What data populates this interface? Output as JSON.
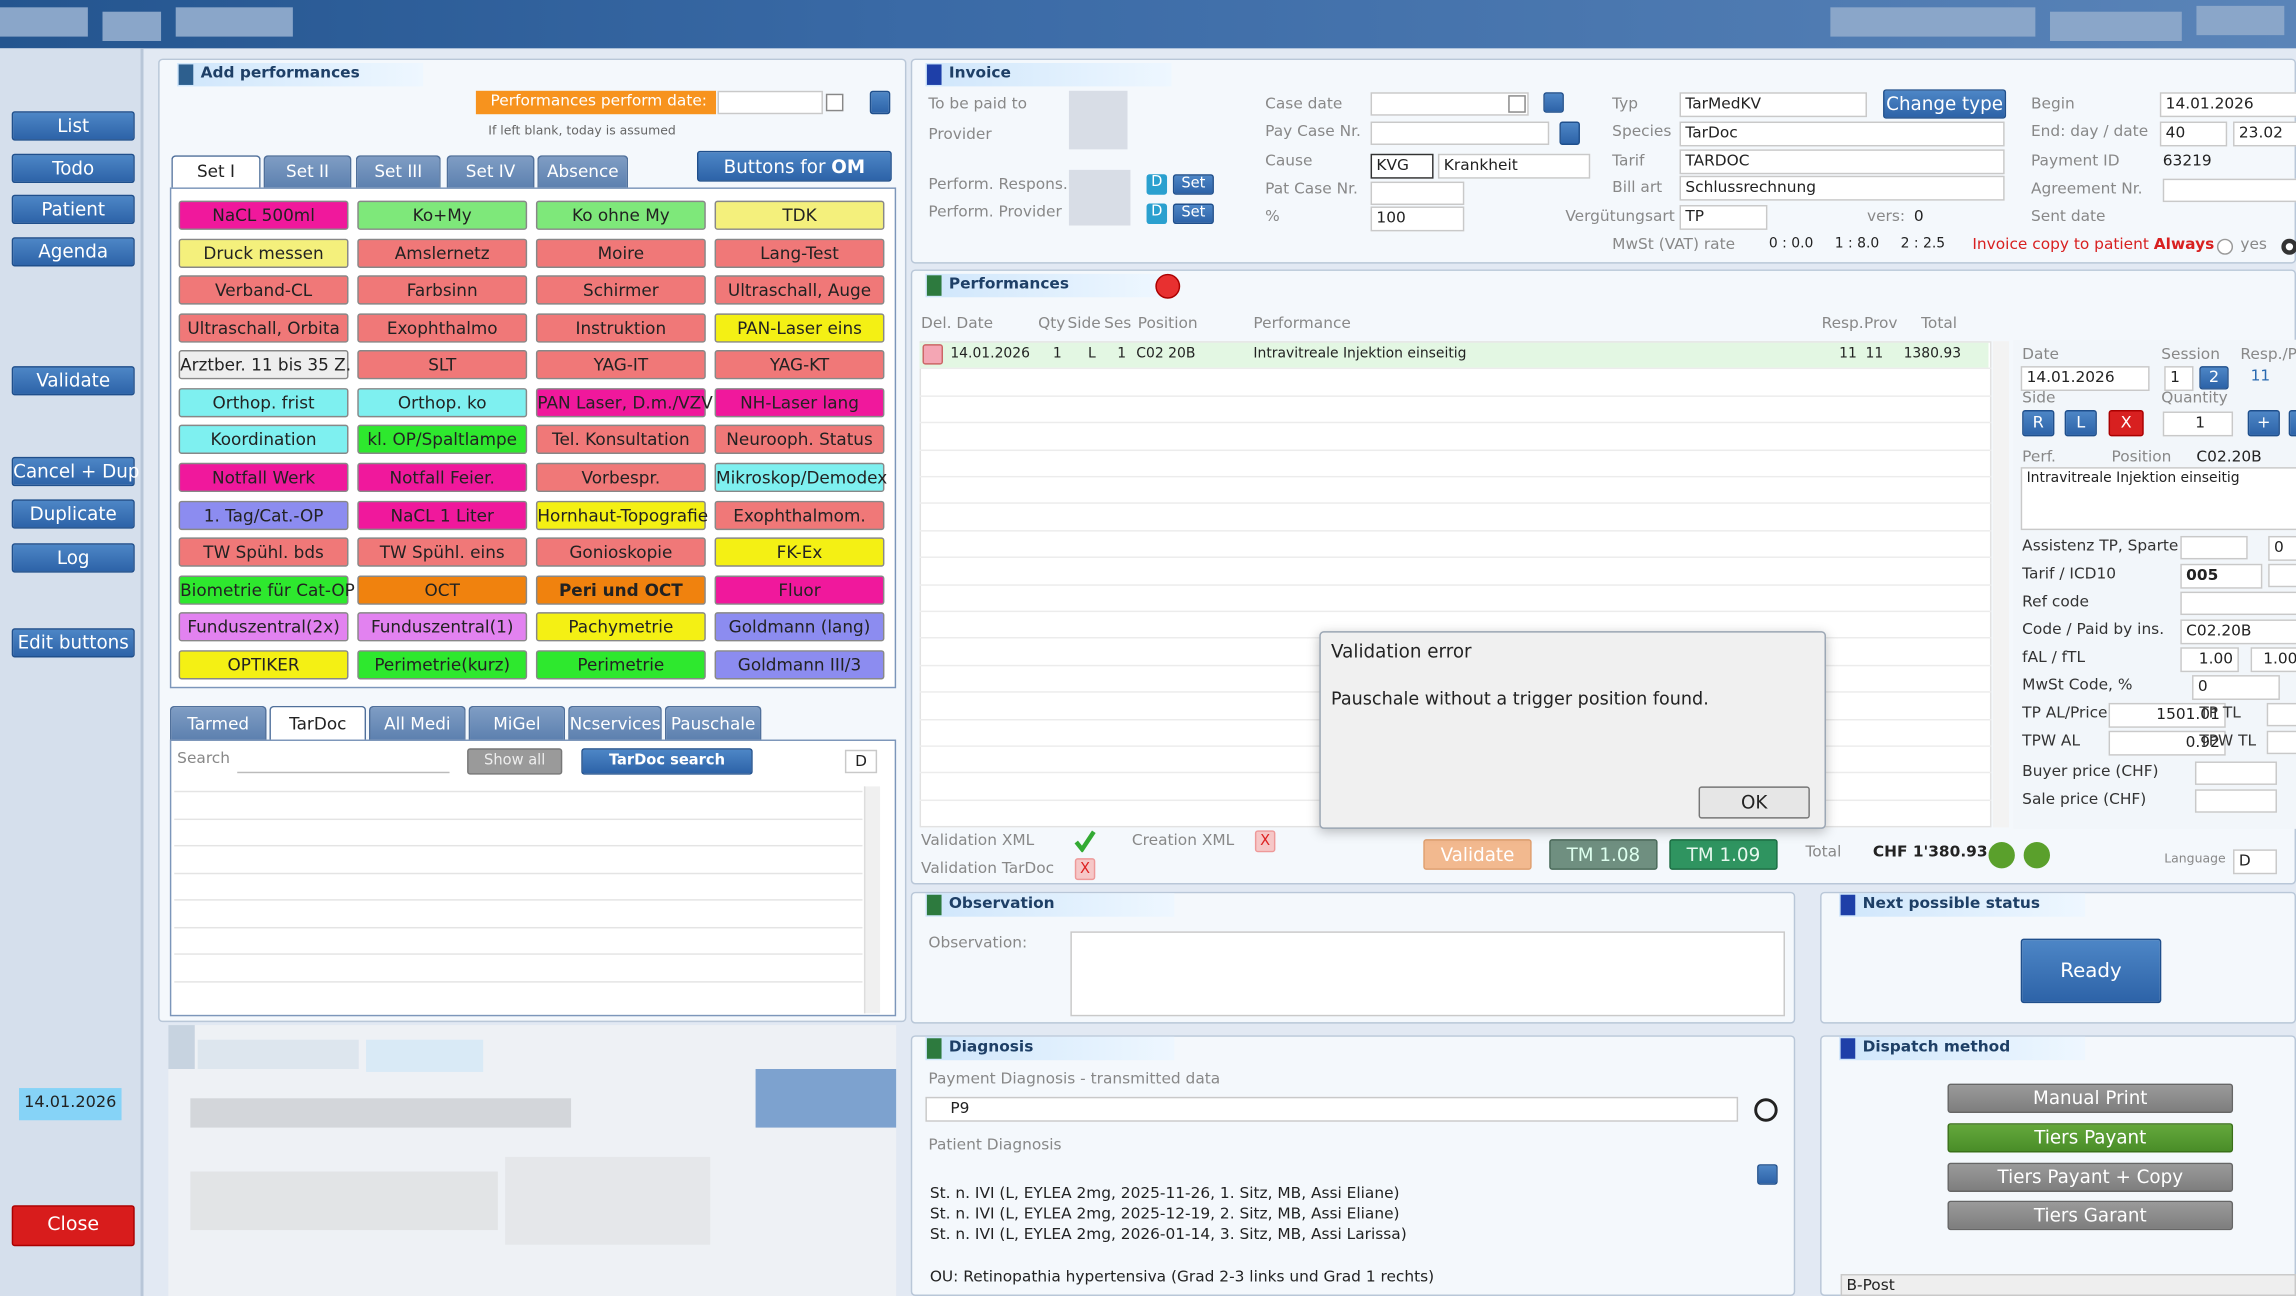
{
  "sidebar": {
    "buttons": [
      "List",
      "Todo",
      "Patient",
      "Agenda",
      "Validate",
      "Cancel + Dup",
      "Duplicate",
      "Log",
      "Edit buttons"
    ],
    "date": "14.01.2026",
    "close": "Close"
  },
  "add_performances": {
    "title": "Add performances",
    "date_label": "Performances  perform date:",
    "hint": "If left blank, today is assumed",
    "tabs": [
      "Set I",
      "Set II",
      "Set III",
      "Set IV",
      "Absence"
    ],
    "om_button": {
      "text": "Buttons for ",
      "bold": "OM"
    },
    "buttons": [
      {
        "label": "NaCL 500ml",
        "color": "#f0189c"
      },
      {
        "label": "Ko+My",
        "color": "#7ee87a"
      },
      {
        "label": "Ko ohne My",
        "color": "#7ee87a"
      },
      {
        "label": "TDK",
        "color": "#f4f07c"
      },
      {
        "label": "Druck messen",
        "color": "#f4f07c"
      },
      {
        "label": "Amslernetz",
        "color": "#f07878"
      },
      {
        "label": "Moire",
        "color": "#f07878"
      },
      {
        "label": "Lang-Test",
        "color": "#f07878"
      },
      {
        "label": "Verband-CL",
        "color": "#f07878"
      },
      {
        "label": "Farbsinn",
        "color": "#f07878"
      },
      {
        "label": "Schirmer",
        "color": "#f07878"
      },
      {
        "label": "Ultraschall, Auge",
        "color": "#f07878"
      },
      {
        "label": "Ultraschall, Orbita",
        "color": "#f07878"
      },
      {
        "label": "Exophthalmo",
        "color": "#f07878"
      },
      {
        "label": "Instruktion",
        "color": "#f07878"
      },
      {
        "label": "PAN-Laser eins",
        "color": "#f4f014"
      },
      {
        "label": "Arztber. 11 bis 35 Z.",
        "color": "#eeeeee"
      },
      {
        "label": "SLT",
        "color": "#f07878"
      },
      {
        "label": "YAG-IT",
        "color": "#f07878"
      },
      {
        "label": "YAG-KT",
        "color": "#f07878"
      },
      {
        "label": "Orthop. frist",
        "color": "#7ef0f0"
      },
      {
        "label": "Orthop. ko",
        "color": "#7ef0f0"
      },
      {
        "label": "PAN Laser, D.m./VZV",
        "color": "#f0189c"
      },
      {
        "label": "NH-Laser lang",
        "color": "#f0189c"
      },
      {
        "label": "Koordination",
        "color": "#7ef0f0"
      },
      {
        "label": "kl. OP/Spaltlampe",
        "color": "#2ee82e"
      },
      {
        "label": "Tel. Konsultation",
        "color": "#f07878"
      },
      {
        "label": "Neurooph. Status",
        "color": "#f07878"
      },
      {
        "label": "Notfall Werk",
        "color": "#f0189c"
      },
      {
        "label": "Notfall Feier.",
        "color": "#f0189c"
      },
      {
        "label": "Vorbespr.",
        "color": "#f07878"
      },
      {
        "label": "Mikroskop/Demodex",
        "color": "#7ef0f0"
      },
      {
        "label": "1. Tag/Cat.-OP",
        "color": "#8c8cf0"
      },
      {
        "label": "NaCL 1 Liter",
        "color": "#f0189c"
      },
      {
        "label": "Hornhaut-Topografie",
        "color": "#f4f014"
      },
      {
        "label": "Exophthalmom.",
        "color": "#f07878"
      },
      {
        "label": "TW Spühl. bds",
        "color": "#f07878"
      },
      {
        "label": "TW Spühl. eins",
        "color": "#f07878"
      },
      {
        "label": "Gonioskopie",
        "color": "#f07878"
      },
      {
        "label": "FK-Ex",
        "color": "#f4f014"
      },
      {
        "label": "Biometrie für Cat-OP",
        "color": "#2ee82e"
      },
      {
        "label": "OCT",
        "color": "#f0820e"
      },
      {
        "label": "Peri und OCT",
        "color": "#f0820e",
        "bold": true
      },
      {
        "label": "Fluor",
        "color": "#f0189c"
      },
      {
        "label": "Funduszentral(2x)",
        "color": "#e282f0"
      },
      {
        "label": "Funduszentral(1)",
        "color": "#e282f0"
      },
      {
        "label": "Pachymetrie",
        "color": "#f4f014"
      },
      {
        "label": "Goldmann (lang)",
        "color": "#8c8cf0"
      },
      {
        "label": "OPTIKER",
        "color": "#f4f014"
      },
      {
        "label": "Perimetrie(kurz)",
        "color": "#2ee82e"
      },
      {
        "label": "Perimetrie",
        "color": "#2ee82e"
      },
      {
        "label": "Goldmann III/3",
        "color": "#8c8cf0"
      }
    ],
    "catalog_tabs": [
      "Tarmed",
      "TarDoc",
      "All Medi",
      "MiGel",
      "Ncservices",
      "Pauschale"
    ],
    "search_label": "Search",
    "show_all": "Show all",
    "tardoc_search": "TarDoc search",
    "d": "D"
  },
  "invoice": {
    "title": "Invoice",
    "to_be_paid": "To be paid to",
    "provider": "Provider",
    "perform_respons": "Perform. Respons.",
    "perform_provider": "Perform. Provider",
    "d": "D",
    "set": "Set",
    "case_date": "Case date",
    "pay_case": "Pay Case Nr.",
    "cause": "Cause",
    "cause_code": "KVG",
    "cause_text": "Krankheit",
    "pat_case": "Pat Case Nr.",
    "percent_label": "%",
    "percent": "100",
    "typ": "Typ",
    "typ_value": "TarMedKV",
    "change_type": "Change type",
    "species": "Species",
    "species_value": "TarDoc",
    "tarif": "Tarif",
    "tarif_value": "TARDOC",
    "bill_art": "Bill art",
    "bill_art_value": "Schlussrechnung",
    "verguetung": "Vergütungsart",
    "verguetung_value": "TP",
    "vers": "vers:",
    "vers_value": "0",
    "vat": "MwSt (VAT) rate",
    "vat_rates": [
      "0 : 0.0",
      "1 : 8.0",
      "2 : 2.5"
    ],
    "copy": "Invoice copy to patient ",
    "copy_value": "Always",
    "yes": "yes",
    "begin": "Begin",
    "begin_value": "14.01.2026",
    "end": "End: day / date",
    "end_days": "40",
    "end_date": "23.02",
    "payment_id": "Payment ID",
    "payment_id_value": "63219",
    "agreement": "Agreement Nr.",
    "sent_date": "Sent date"
  },
  "performances": {
    "title": "Performances",
    "headers": [
      "Del. Date",
      "Qty",
      "Side",
      "Ses",
      "Position",
      "Performance",
      "Resp.",
      "Prov",
      "Total"
    ],
    "row": [
      "14.01.2026",
      "1",
      "L",
      "1",
      "C02 20B",
      "Intravitreale Injektion einseitig",
      "11",
      "11",
      "1380.93"
    ],
    "validation_xml": "Validation XML",
    "creation_xml": "Creation XML",
    "validation_tardoc": "Validation TarDoc",
    "x": "X",
    "validate": "Validate",
    "tm108": "TM 1.08",
    "tm109": "TM 1.09",
    "total": "Total",
    "total_value": "CHF 1'380.93",
    "language": "Language",
    "language_value": "D"
  },
  "detail": {
    "date": "Date",
    "session": "Session",
    "resp": "Resp./P",
    "date_value": "14.01.2026",
    "session_value": "1",
    "session_2": "2",
    "resp_value": "11",
    "side": "Side",
    "quantity": "Quantity",
    "r": "R",
    "l": "L",
    "x": "X",
    "quantity_value": "1",
    "plus": "+",
    "perf": "Perf.",
    "position": "Position",
    "position_value": "C02.20B",
    "description": "Intravitreale Injektion einseitig",
    "assistenz": "Assistenz TP, Sparte",
    "assistenz_value": "0",
    "tarif_icd": "Tarif / ICD10",
    "tarif_icd_value": "005",
    "ref_code": "Ref code",
    "code_paid": "Code / Paid by ins.",
    "code_paid_value": "C02.20B",
    "fal": "fAL / fTL",
    "fal_value": "1.00",
    "ftl_value": "1.00",
    "mwst": "MwSt Code, %",
    "mwst_value": "0",
    "tp_al": "TP AL/Price",
    "tp_al_value": "1501.01",
    "tp_tl": "TP TL",
    "tpw_al": "TPW AL",
    "tpw_al_value": "0.92",
    "tpw_tl": "TPW TL",
    "buyer": "Buyer price (CHF)",
    "sale": "Sale price (CHF)"
  },
  "dialog": {
    "title": "Validation error",
    "message": "Pauschale without a trigger position found.",
    "ok": "OK"
  },
  "observation": {
    "title": "Observation",
    "label": "Observation:"
  },
  "next_status": {
    "title": "Next possible status",
    "ready": "Ready"
  },
  "diagnosis": {
    "title": "Diagnosis",
    "payment": "Payment Diagnosis - transmitted data",
    "payment_value": "P9",
    "patient": "Patient Diagnosis",
    "lines": [
      "St. n. IVI (L, EYLEA 2mg, 2025-11-26, 1. Sitz, MB, Assi Eliane)",
      "St. n. IVI (L, EYLEA 2mg, 2025-12-19, 2. Sitz, MB, Assi Eliane)",
      "St. n. IVI (L, EYLEA 2mg, 2026-01-14, 3. Sitz, MB, Assi Larissa)"
    ],
    "ou": "OU: Retinopathia hypertensiva (Grad 2-3 links und Grad 1 rechts)"
  },
  "dispatch": {
    "title": "Dispatch method",
    "buttons": [
      "Manual Print",
      "Tiers Payant",
      "Tiers Payant + Copy",
      "Tiers Garant"
    ],
    "b_post": "B-Post"
  }
}
